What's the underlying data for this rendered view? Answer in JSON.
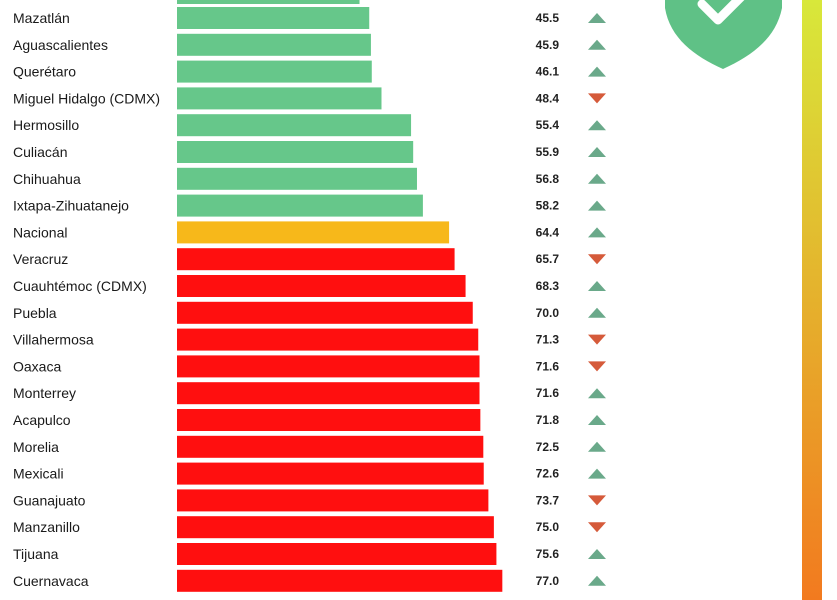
{
  "chart_data": {
    "type": "bar",
    "orientation": "horizontal",
    "title": "",
    "xlabel": "",
    "ylabel": "",
    "xlim": [
      0,
      100
    ],
    "grid": false,
    "legend": "none",
    "colors": {
      "below_national": "#66c78a",
      "national": "#f7b81a",
      "above_national": "#ff0f0f",
      "trend_up": "#6aa98a",
      "trend_down": "#d55a3a",
      "shield": "#5fc186",
      "scale_top": "#d8e83a",
      "scale_bottom": "#f27a1f"
    },
    "icons": {
      "shield": "shield-check-icon",
      "trend_up": "triangle-up-icon",
      "trend_down": "triangle-down-icon"
    },
    "partial_top_bar": {
      "value": 43.2,
      "group": "below_national"
    },
    "categories": [
      "Mazatlán",
      "Aguascalientes",
      "Querétaro",
      "Miguel Hidalgo (CDMX)",
      "Hermosillo",
      "Culiacán",
      "Chihuahua",
      "Ixtapa-Zihuatanejo",
      "Nacional",
      "Veracruz",
      "Cuauhtémoc (CDMX)",
      "Puebla",
      "Villahermosa",
      "Oaxaca",
      "Monterrey",
      "Acapulco",
      "Morelia",
      "Mexicali",
      "Guanajuato",
      "Manzanillo",
      "Tijuana",
      "Cuernavaca"
    ],
    "values": [
      45.5,
      45.9,
      46.1,
      48.4,
      55.4,
      55.9,
      56.8,
      58.2,
      64.4,
      65.7,
      68.3,
      70.0,
      71.3,
      71.6,
      71.6,
      71.8,
      72.5,
      72.6,
      73.7,
      75.0,
      75.6,
      77.0
    ],
    "value_labels": [
      "45.5",
      "45.9",
      "46.1",
      "48.4",
      "55.4",
      "55.9",
      "56.8",
      "58.2",
      "64.4",
      "65.7",
      "68.3",
      "70.0",
      "71.3",
      "71.6",
      "71.6",
      "71.8",
      "72.5",
      "72.6",
      "73.7",
      "75.0",
      "75.6",
      "77.0"
    ],
    "groups": [
      "below_national",
      "below_national",
      "below_national",
      "below_national",
      "below_national",
      "below_national",
      "below_national",
      "below_national",
      "national",
      "above_national",
      "above_national",
      "above_national",
      "above_national",
      "above_national",
      "above_national",
      "above_national",
      "above_national",
      "above_national",
      "above_national",
      "above_national",
      "above_national",
      "above_national"
    ],
    "trends": [
      "up",
      "up",
      "up",
      "down",
      "up",
      "up",
      "up",
      "up",
      "up",
      "down",
      "up",
      "up",
      "down",
      "down",
      "up",
      "up",
      "up",
      "up",
      "down",
      "down",
      "up",
      "up"
    ]
  }
}
